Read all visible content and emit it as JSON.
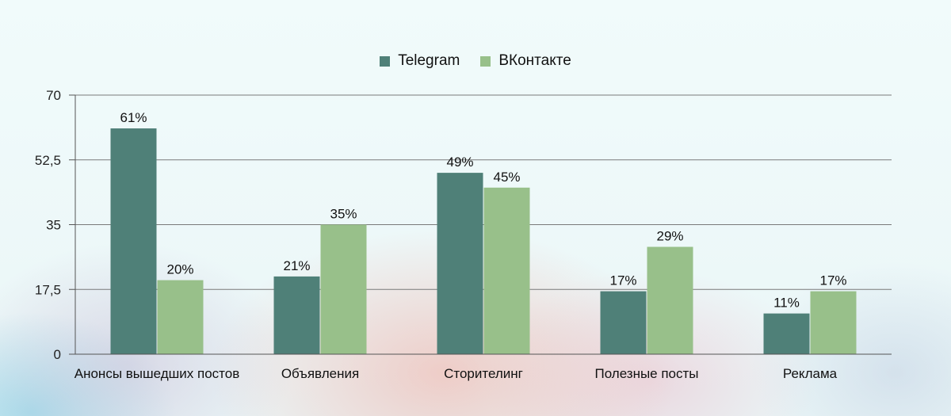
{
  "chart_data": {
    "type": "bar",
    "title": "",
    "xlabel": "",
    "ylabel": "",
    "categories": [
      "Анонсы вышедших постов",
      "Объявления",
      "Сторителинг",
      "Полезные посты",
      "Реклама"
    ],
    "series": [
      {
        "name": "Telegram",
        "values": [
          61,
          21,
          49,
          17,
          11
        ],
        "labels": [
          "61%",
          "21%",
          "49%",
          "17%",
          "11%"
        ],
        "color": "#4f8078"
      },
      {
        "name": "ВКонтакте",
        "values": [
          20,
          35,
          45,
          29,
          17
        ],
        "labels": [
          "20%",
          "35%",
          "45%",
          "29%",
          "17%"
        ],
        "color": "#98c08a"
      }
    ],
    "ylim": [
      0,
      70
    ],
    "yticks": [
      0,
      17.5,
      35,
      52.5,
      70
    ],
    "ytick_labels": [
      "0",
      "17,5",
      "35",
      "52,5",
      "70"
    ],
    "grid": true,
    "legend_position": "top-center"
  }
}
